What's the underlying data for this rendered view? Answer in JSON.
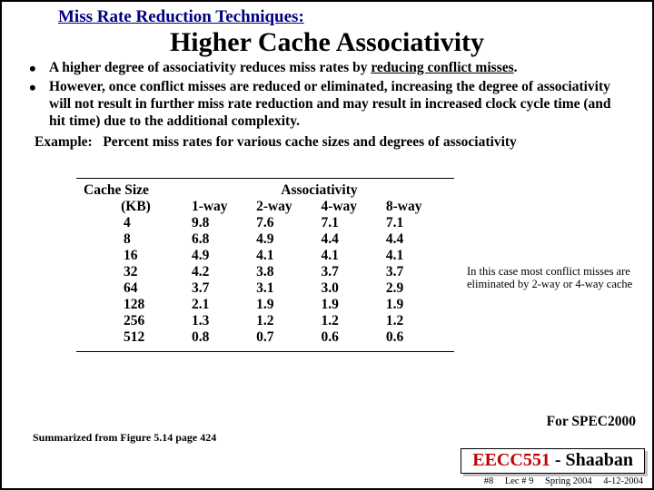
{
  "topic": "Miss Rate Reduction Techniques:",
  "title": "Higher Cache Associativity",
  "bullets": {
    "b1_pre": "A higher degree of associativity reduces miss rates by ",
    "b1_u": "reducing conflict misses",
    "b1_post": ".",
    "b2": "However, once conflict misses are reduced or eliminated, increasing the degree of associativity will not result in further miss rate reduction and may result in increased clock cycle time (and hit time) due to the additional complexity."
  },
  "example_label": "Example:",
  "example_text": "Percent miss rates for various cache sizes and degrees of associativity",
  "table": {
    "col1_header_line1": "Cache Size",
    "col1_header_line2": "(KB)",
    "assoc_header": "Associativity",
    "ways": [
      "1-way",
      "2-way",
      "4-way",
      "8-way"
    ],
    "sizes": [
      "4",
      "8",
      "16",
      "32",
      "64",
      "128",
      "256",
      "512"
    ],
    "rows": [
      [
        "9.8",
        "7.6",
        "7.1",
        "7.1"
      ],
      [
        "6.8",
        "4.9",
        "4.4",
        "4.4"
      ],
      [
        "4.9",
        "4.1",
        "4.1",
        "4.1"
      ],
      [
        "4.2",
        "3.8",
        "3.7",
        "3.7"
      ],
      [
        "3.7",
        "3.1",
        "3.0",
        "2.9"
      ],
      [
        "2.1",
        "1.9",
        "1.9",
        "1.9"
      ],
      [
        "1.3",
        "1.2",
        "1.2",
        "1.2"
      ],
      [
        "0.8",
        "0.7",
        "0.6",
        "0.6"
      ]
    ]
  },
  "annotation": "In this case most conflict misses are eliminated by 2-way or 4-way cache",
  "spec_note": "For SPEC2000",
  "summary_note": "Summarized from Figure 5.14 page 424",
  "brand_course": "EECC551",
  "brand_sep": " - ",
  "brand_author": "Shaaban",
  "footer": {
    "slide": "#8",
    "lec": "Lec # 9",
    "term": "Spring 2004",
    "date": "4-12-2004"
  }
}
